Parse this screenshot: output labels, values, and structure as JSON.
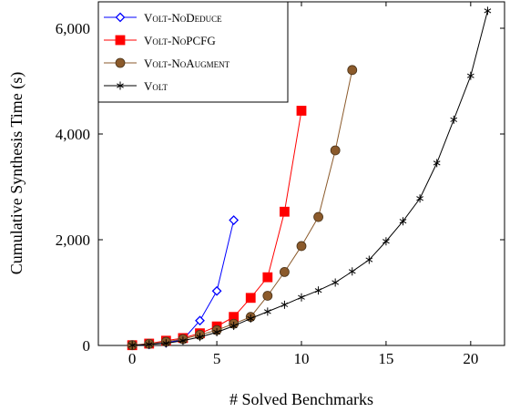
{
  "chart_data": {
    "type": "line",
    "xlabel": "# Solved Benchmarks",
    "ylabel": "Cumulative Synthesis Time (s)",
    "xlim": [
      -2,
      22
    ],
    "ylim": [
      0,
      6500
    ],
    "x_ticks": [
      0,
      5,
      10,
      15,
      20
    ],
    "y_ticks": [
      0,
      2000,
      4000,
      6000
    ],
    "x_tick_labels": [
      "0",
      "5",
      "10",
      "15",
      "20"
    ],
    "y_tick_labels": [
      "0",
      "2,000",
      "4,000",
      "6,000"
    ],
    "grid": false,
    "legend_position": "top-left",
    "series": [
      {
        "name": "Volt-NoDeduce",
        "color": "#0000ff",
        "marker": "diamond",
        "x": [
          0,
          1,
          2,
          3,
          4,
          5,
          6
        ],
        "y": [
          5,
          20,
          50,
          110,
          470,
          1030,
          2370
        ]
      },
      {
        "name": "Volt-NoPCFG",
        "color": "#ff0000",
        "marker": "square",
        "x": [
          0,
          1,
          2,
          3,
          4,
          5,
          6,
          7,
          8,
          9,
          10
        ],
        "y": [
          5,
          35,
          90,
          140,
          230,
          360,
          540,
          900,
          1290,
          2530,
          4440
        ]
      },
      {
        "name": "Volt-NoAugment",
        "color": "#8b5a2b",
        "marker": "circle",
        "x": [
          0,
          1,
          2,
          3,
          4,
          5,
          6,
          7,
          8,
          9,
          10,
          11,
          12,
          13
        ],
        "y": [
          5,
          30,
          70,
          120,
          200,
          290,
          410,
          540,
          940,
          1390,
          1880,
          2430,
          3690,
          5210
        ]
      },
      {
        "name": "Volt",
        "color": "#000000",
        "marker": "star",
        "x": [
          0,
          1,
          2,
          3,
          4,
          5,
          6,
          7,
          8,
          9,
          10,
          11,
          12,
          13,
          14,
          15,
          16,
          17,
          18,
          19,
          20,
          21
        ],
        "y": [
          5,
          20,
          40,
          90,
          160,
          250,
          370,
          510,
          640,
          770,
          910,
          1040,
          1190,
          1400,
          1620,
          1970,
          2350,
          2780,
          3450,
          4270,
          5100,
          6330
        ]
      }
    ]
  }
}
